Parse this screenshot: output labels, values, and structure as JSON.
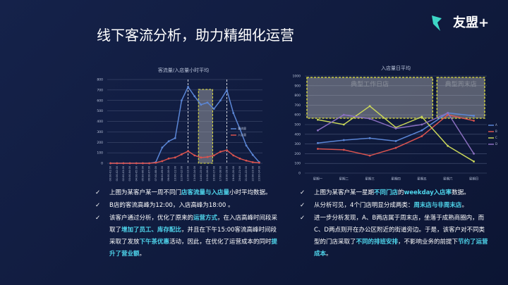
{
  "header": {
    "title": "线下客流分析，助力精细化运营",
    "logo": "友盟+"
  },
  "charts": [
    {
      "type": "line",
      "title": "客流量/入店量小时平均",
      "categories": [
        "00:00-01:00",
        "01:00-02:00",
        "02:00-03:00",
        "03:00-04:00",
        "04:00-05:00",
        "05:00-06:00",
        "06:00-07:00",
        "07:00-08:00",
        "08:00-09:00",
        "09:00-10:00",
        "10:00-11:00",
        "11:00-12:00",
        "12:00-13:00",
        "13:00-14:00",
        "14:00-15:00",
        "15:00-16:00",
        "16:00-17:00",
        "17:00-18:00",
        "18:00-19:00",
        "19:00-20:00",
        "20:00-21:00",
        "21:00-22:00",
        "22:00-23:00",
        "23:00-24:00"
      ],
      "series": [
        {
          "name": "客流量",
          "color": "#5b86d6",
          "values": [
            0,
            0,
            0,
            0,
            0,
            0,
            0,
            10,
            150,
            210,
            240,
            600,
            730,
            640,
            560,
            580,
            520,
            600,
            700,
            480,
            330,
            170,
            80,
            10
          ]
        },
        {
          "name": "入店量",
          "color": "#d9534f",
          "values": [
            0,
            0,
            0,
            0,
            0,
            0,
            0,
            5,
            20,
            45,
            55,
            85,
            115,
            75,
            55,
            60,
            75,
            110,
            125,
            75,
            45,
            25,
            10,
            5
          ]
        }
      ],
      "ylim": [
        0,
        800
      ],
      "yticks": [
        0,
        100,
        200,
        300,
        400,
        500,
        600,
        700,
        800
      ],
      "grid": true
    },
    {
      "type": "line",
      "title": "入店量日平均",
      "categories": [
        "星期一",
        "星期二",
        "星期三",
        "星期四",
        "星期五",
        "星期六",
        "星期日"
      ],
      "series": [
        {
          "name": "A",
          "color": "#5b86d6",
          "values": [
            310,
            340,
            360,
            330,
            440,
            620,
            590
          ]
        },
        {
          "name": "B",
          "color": "#d9534f",
          "values": [
            250,
            240,
            180,
            260,
            380,
            600,
            540
          ]
        },
        {
          "name": "C",
          "color": "#c9d65a",
          "values": [
            550,
            500,
            690,
            470,
            580,
            280,
            120
          ]
        },
        {
          "name": "D",
          "color": "#8a6fc0",
          "values": [
            440,
            600,
            560,
            460,
            500,
            620,
            200
          ]
        }
      ],
      "ylim": [
        0,
        1000
      ],
      "yticks": [
        0,
        100,
        200,
        300,
        400,
        500,
        600,
        700,
        800,
        900,
        1000
      ],
      "grid": true,
      "annotations": [
        "典型工作日店",
        "典型周末店"
      ]
    }
  ],
  "left_bullets": [
    [
      {
        "text": "上图为某客户某一周不同门",
        "color": "#ffffff"
      },
      {
        "text": "店客流量与入店量",
        "color": "#4fd6ec"
      },
      {
        "text": "小时平均数据。",
        "color": "#ffffff"
      }
    ],
    [
      {
        "text": "B店的客流高峰为12:00，入店高峰为18:00 。",
        "color": "#ffffff"
      }
    ],
    [
      {
        "text": "该客户通过分析，优化了原来的",
        "color": "#ffffff"
      },
      {
        "text": "运营方式",
        "color": "#4fd6ec"
      },
      {
        "text": "，在入店高峰时间段采取了",
        "color": "#ffffff"
      },
      {
        "text": "增加了员工、库存配比",
        "color": "#4fd6ec"
      },
      {
        "text": "，并且在下午15:00客流高峰时间段采取了发放",
        "color": "#ffffff"
      },
      {
        "text": "下午茶优惠",
        "color": "#4fd6ec"
      },
      {
        "text": "活动，因此，在优化了运营成本的同时",
        "color": "#ffffff"
      },
      {
        "text": "提升了营业额",
        "color": "#4fd6ec"
      },
      {
        "text": "。",
        "color": "#ffffff"
      }
    ]
  ],
  "right_bullets": [
    [
      {
        "text": "上图为某客户某一星期",
        "color": "#ffffff"
      },
      {
        "text": "不同门店",
        "color": "#4fd6ec"
      },
      {
        "text": "的",
        "color": "#ffffff"
      },
      {
        "text": "weekday入店率",
        "color": "#4fd6ec"
      },
      {
        "text": "数据。",
        "color": "#ffffff"
      }
    ],
    [
      {
        "text": "从分析可见，4个门店明显分成两类：",
        "color": "#ffffff"
      },
      {
        "text": "周末店与非周末店",
        "color": "#4fd6ec"
      },
      {
        "text": "。",
        "color": "#ffffff"
      }
    ],
    [
      {
        "text": "进一步分析发现，A、B两店属于周末店，坐落于成熟商圈内，而C、D两点则开在办公区附近的街道旁边。于是，该客户对不同类型的门店采取了",
        "color": "#ffffff"
      },
      {
        "text": "不同的排班安排",
        "color": "#4fd6ec"
      },
      {
        "text": "，不影响业务的前提下",
        "color": "#ffffff"
      },
      {
        "text": "节约了运营成本",
        "color": "#4fd6ec"
      },
      {
        "text": "。",
        "color": "#ffffff"
      }
    ]
  ]
}
